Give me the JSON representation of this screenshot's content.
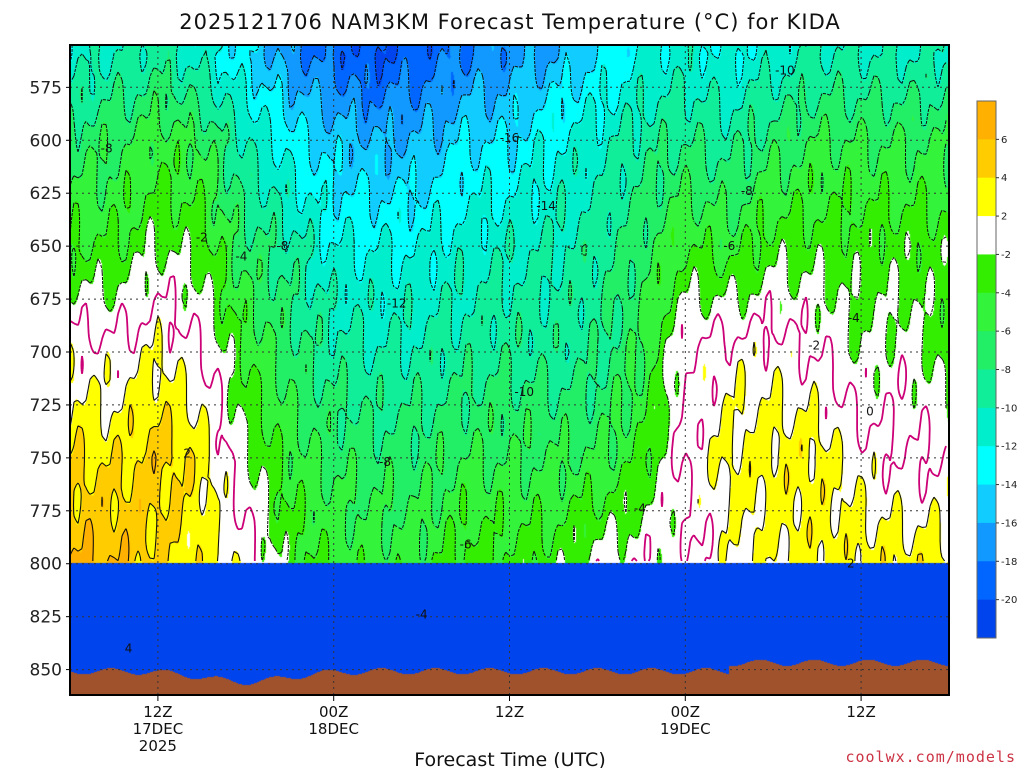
{
  "chart_data": {
    "type": "heatmap",
    "title": "2025121706 NAM3KM Forecast Temperature (°C) for KIDA",
    "xlabel": "Forecast Time (UTC)",
    "ylabel": "",
    "x_ticks": [
      {
        "line1": "12Z",
        "line2": "17DEC",
        "line3": "2025",
        "hour": 6
      },
      {
        "line1": "00Z",
        "line2": "18DEC",
        "line3": "",
        "hour": 18
      },
      {
        "line1": "12Z",
        "line2": "",
        "line3": "",
        "hour": 30
      },
      {
        "line1": "00Z",
        "line2": "19DEC",
        "line3": "",
        "hour": 42
      },
      {
        "line1": "12Z",
        "line2": "",
        "line3": "",
        "hour": 54
      }
    ],
    "xlim": [
      0,
      60
    ],
    "ylim": [
      862,
      555
    ],
    "y_ticks": [
      575,
      600,
      625,
      650,
      675,
      700,
      725,
      750,
      775,
      800,
      825,
      850
    ],
    "grid": true,
    "colorbar": {
      "placement": "right",
      "ticks": [
        "6",
        "4",
        "2",
        "-2",
        "-4",
        "-6",
        "-8",
        "-10",
        "-12",
        "-14",
        "-16",
        "-18",
        "-20"
      ],
      "bins": [
        {
          "lo": 6,
          "hi": 8,
          "color": "#ffb000"
        },
        {
          "lo": 4,
          "hi": 6,
          "color": "#ffcc00"
        },
        {
          "lo": 2,
          "hi": 4,
          "color": "#ffff00"
        },
        {
          "lo": -2,
          "hi": 2,
          "color": "#ffffff"
        },
        {
          "lo": -4,
          "hi": -2,
          "color": "#33ee00"
        },
        {
          "lo": -6,
          "hi": -4,
          "color": "#33f43a"
        },
        {
          "lo": -8,
          "hi": -6,
          "color": "#22ee66"
        },
        {
          "lo": -10,
          "hi": -8,
          "color": "#11ee99"
        },
        {
          "lo": -12,
          "hi": -10,
          "color": "#00eecc"
        },
        {
          "lo": -14,
          "hi": -12,
          "color": "#00ffff"
        },
        {
          "lo": -16,
          "hi": -14,
          "color": "#11ccff"
        },
        {
          "lo": -18,
          "hi": -16,
          "color": "#1199ff"
        },
        {
          "lo": -20,
          "hi": -18,
          "color": "#0066ff"
        },
        {
          "lo": -22,
          "hi": -20,
          "color": "#0044ee"
        }
      ]
    },
    "ground_color": "#a0522d",
    "zero_line_color": "#cc0077",
    "anchor_times": [
      0,
      3,
      6,
      9,
      12,
      15,
      18,
      21,
      24,
      27,
      30,
      33,
      36,
      39,
      42,
      45,
      48,
      51,
      54,
      57,
      60
    ],
    "anchor_levels": [
      560,
      600,
      650,
      700,
      750,
      800,
      850
    ],
    "temperature_grid": [
      [
        -11,
        -7,
        -4,
        1,
        4,
        6
      ],
      [
        -10,
        -6.5,
        -4,
        0.5,
        3.5,
        6
      ],
      [
        -9,
        -5,
        -2,
        2,
        5,
        4
      ],
      [
        -11,
        -6,
        -3,
        0,
        3,
        3
      ],
      [
        -14,
        -10,
        -7,
        -4,
        -1.5,
        1
      ],
      [
        -17,
        -13,
        -9,
        -7,
        -5,
        -3
      ],
      [
        -19,
        -15,
        -12,
        -9,
        -6.5,
        -4.5
      ],
      [
        -20,
        -16,
        -12,
        -10,
        -7,
        -5
      ],
      [
        -19,
        -16,
        -12,
        -9.5,
        -7,
        -5
      ],
      [
        -18,
        -14,
        -11,
        -9,
        -6,
        -3
      ],
      [
        -17,
        -14,
        -10.5,
        -8.5,
        -6,
        -3.5
      ],
      [
        -16,
        -12,
        -10,
        -9,
        -6,
        -3
      ],
      [
        -14,
        -11,
        -9,
        -8.5,
        -6,
        -1
      ],
      [
        -12,
        -9,
        -7,
        -6,
        -4,
        -0.5
      ],
      [
        -11,
        -8,
        -4,
        0,
        0.5,
        -1
      ],
      [
        -12,
        -9,
        -5,
        1,
        2.5,
        1.5
      ],
      [
        -11,
        -7,
        -3,
        1,
        3,
        2
      ],
      [
        -10,
        -6,
        -3,
        0,
        3,
        3
      ],
      [
        -10,
        -6,
        -3,
        -2,
        1,
        3
      ],
      [
        -10,
        -6,
        -3,
        -1,
        0,
        3
      ],
      [
        -10,
        -6,
        -3,
        -3,
        0,
        3
      ]
    ],
    "contour_labels": [
      {
        "text": "-8",
        "t": 2.5,
        "p": 604
      },
      {
        "text": "-2",
        "t": 9,
        "p": 646
      },
      {
        "text": "-4",
        "t": 11.7,
        "p": 655
      },
      {
        "text": "-8",
        "t": 14.5,
        "p": 650
      },
      {
        "text": "2",
        "t": 8,
        "p": 748
      },
      {
        "text": "4",
        "t": 4,
        "p": 840
      },
      {
        "text": "-12",
        "t": 22.3,
        "p": 677
      },
      {
        "text": "-8",
        "t": 21.5,
        "p": 752
      },
      {
        "text": "-6",
        "t": 27,
        "p": 791
      },
      {
        "text": "-4",
        "t": 24,
        "p": 824
      },
      {
        "text": "-16",
        "t": 30,
        "p": 599
      },
      {
        "text": "-14",
        "t": 32.5,
        "p": 631
      },
      {
        "text": "-10",
        "t": 31,
        "p": 719
      },
      {
        "text": "-4",
        "t": 38.9,
        "p": 774
      },
      {
        "text": "-10",
        "t": 48.8,
        "p": 567
      },
      {
        "text": "-8",
        "t": 46.2,
        "p": 624
      },
      {
        "text": "-6",
        "t": 45,
        "p": 650
      },
      {
        "text": "-4",
        "t": 53.5,
        "p": 684
      },
      {
        "text": "-2",
        "t": 50.8,
        "p": 697
      },
      {
        "text": "0",
        "t": 54.6,
        "p": 728
      },
      {
        "text": "2",
        "t": 53.3,
        "p": 800
      }
    ],
    "credit": "coolwx.com/models"
  }
}
